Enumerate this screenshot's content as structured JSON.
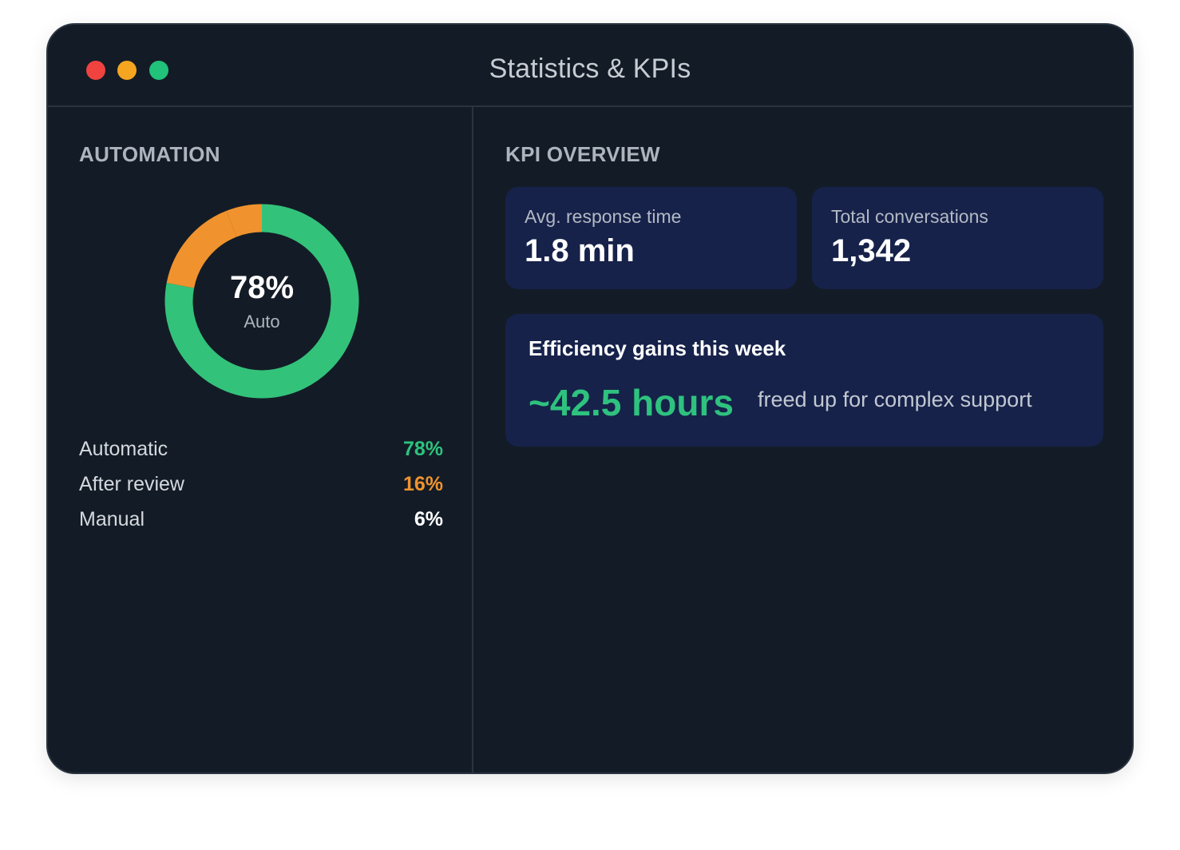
{
  "window": {
    "title": "Statistics & KPIs",
    "controls": [
      {
        "name": "close",
        "color": "#f0433f"
      },
      {
        "name": "minimize",
        "color": "#f6a521"
      },
      {
        "name": "maximize",
        "color": "#21c27a"
      }
    ]
  },
  "automation": {
    "heading": "AUTOMATION",
    "donut": {
      "center_value": "78%",
      "center_label": "Auto",
      "segments": [
        {
          "name": "Automatic",
          "fraction": 0.78,
          "color": "#33c27a"
        },
        {
          "name": "After review",
          "fraction": 0.16,
          "color": "#f0932e"
        },
        {
          "name": "Manual",
          "fraction": 0.06,
          "color": "#f0932e"
        }
      ]
    },
    "legend": [
      {
        "label": "Automatic",
        "value": "78%",
        "color": "#2ec27e"
      },
      {
        "label": "After review",
        "value": "16%",
        "color": "#f0932e"
      },
      {
        "label": "Manual",
        "value": "6%",
        "color": "#ffffff"
      }
    ]
  },
  "kpi": {
    "heading": "KPI OVERVIEW",
    "cards": [
      {
        "label": "Avg. response time",
        "value": "1.8 min"
      },
      {
        "label": "Total conversations",
        "value": "1,342"
      }
    ],
    "efficiency": {
      "title": "Efficiency gains this week",
      "value": "~42.5 hours",
      "caption": "freed up for complex support"
    }
  },
  "colors": {
    "background": "#131c26",
    "card": "#16224a",
    "accent_green": "#2ec27e",
    "accent_orange": "#f0932e"
  }
}
